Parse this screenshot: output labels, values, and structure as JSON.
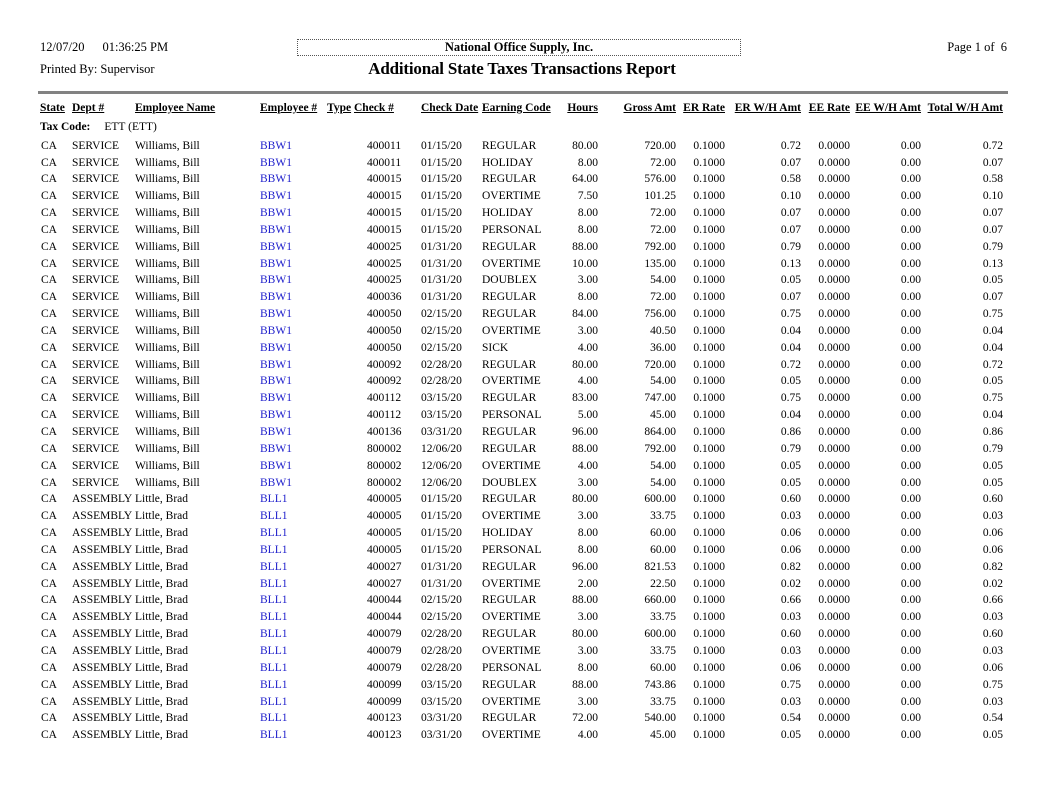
{
  "header": {
    "print_date": "12/07/20",
    "print_time": "01:36:25 PM",
    "printed_by": "Printed By: Supervisor",
    "company_name": "National Office Supply, Inc.",
    "page_indicator": "Page 1 of  6",
    "report_title": "Additional State Taxes Transactions Report"
  },
  "tax_code": {
    "label": "Tax Code:",
    "value": "ETT (ETT)"
  },
  "colors": {
    "employee_link": "#2222CC",
    "rule": "#828282"
  },
  "table": {
    "columns": [
      "State",
      "Dept #",
      "Employee Name",
      "Employee #",
      "Type",
      "Check #",
      "Check Date",
      "Earning Code",
      "Hours",
      "Gross Amt",
      "ER Rate",
      "ER W/H Amt",
      "EE Rate",
      "EE W/H Amt",
      "Total W/H Amt"
    ],
    "rows": [
      [
        "CA",
        "SERVICE",
        "Williams, Bill",
        "BBW1",
        "",
        "400011",
        "01/15/20",
        "REGULAR",
        "80.00",
        "720.00",
        "0.1000",
        "0.72",
        "0.0000",
        "0.00",
        "0.72"
      ],
      [
        "CA",
        "SERVICE",
        "Williams, Bill",
        "BBW1",
        "",
        "400011",
        "01/15/20",
        "HOLIDAY",
        "8.00",
        "72.00",
        "0.1000",
        "0.07",
        "0.0000",
        "0.00",
        "0.07"
      ],
      [
        "CA",
        "SERVICE",
        "Williams, Bill",
        "BBW1",
        "",
        "400015",
        "01/15/20",
        "REGULAR",
        "64.00",
        "576.00",
        "0.1000",
        "0.58",
        "0.0000",
        "0.00",
        "0.58"
      ],
      [
        "CA",
        "SERVICE",
        "Williams, Bill",
        "BBW1",
        "",
        "400015",
        "01/15/20",
        "OVERTIME",
        "7.50",
        "101.25",
        "0.1000",
        "0.10",
        "0.0000",
        "0.00",
        "0.10"
      ],
      [
        "CA",
        "SERVICE",
        "Williams, Bill",
        "BBW1",
        "",
        "400015",
        "01/15/20",
        "HOLIDAY",
        "8.00",
        "72.00",
        "0.1000",
        "0.07",
        "0.0000",
        "0.00",
        "0.07"
      ],
      [
        "CA",
        "SERVICE",
        "Williams, Bill",
        "BBW1",
        "",
        "400015",
        "01/15/20",
        "PERSONAL",
        "8.00",
        "72.00",
        "0.1000",
        "0.07",
        "0.0000",
        "0.00",
        "0.07"
      ],
      [
        "CA",
        "SERVICE",
        "Williams, Bill",
        "BBW1",
        "",
        "400025",
        "01/31/20",
        "REGULAR",
        "88.00",
        "792.00",
        "0.1000",
        "0.79",
        "0.0000",
        "0.00",
        "0.79"
      ],
      [
        "CA",
        "SERVICE",
        "Williams, Bill",
        "BBW1",
        "",
        "400025",
        "01/31/20",
        "OVERTIME",
        "10.00",
        "135.00",
        "0.1000",
        "0.13",
        "0.0000",
        "0.00",
        "0.13"
      ],
      [
        "CA",
        "SERVICE",
        "Williams, Bill",
        "BBW1",
        "",
        "400025",
        "01/31/20",
        "DOUBLEX",
        "3.00",
        "54.00",
        "0.1000",
        "0.05",
        "0.0000",
        "0.00",
        "0.05"
      ],
      [
        "CA",
        "SERVICE",
        "Williams, Bill",
        "BBW1",
        "",
        "400036",
        "01/31/20",
        "REGULAR",
        "8.00",
        "72.00",
        "0.1000",
        "0.07",
        "0.0000",
        "0.00",
        "0.07"
      ],
      [
        "CA",
        "SERVICE",
        "Williams, Bill",
        "BBW1",
        "",
        "400050",
        "02/15/20",
        "REGULAR",
        "84.00",
        "756.00",
        "0.1000",
        "0.75",
        "0.0000",
        "0.00",
        "0.75"
      ],
      [
        "CA",
        "SERVICE",
        "Williams, Bill",
        "BBW1",
        "",
        "400050",
        "02/15/20",
        "OVERTIME",
        "3.00",
        "40.50",
        "0.1000",
        "0.04",
        "0.0000",
        "0.00",
        "0.04"
      ],
      [
        "CA",
        "SERVICE",
        "Williams, Bill",
        "BBW1",
        "",
        "400050",
        "02/15/20",
        "SICK",
        "4.00",
        "36.00",
        "0.1000",
        "0.04",
        "0.0000",
        "0.00",
        "0.04"
      ],
      [
        "CA",
        "SERVICE",
        "Williams, Bill",
        "BBW1",
        "",
        "400092",
        "02/28/20",
        "REGULAR",
        "80.00",
        "720.00",
        "0.1000",
        "0.72",
        "0.0000",
        "0.00",
        "0.72"
      ],
      [
        "CA",
        "SERVICE",
        "Williams, Bill",
        "BBW1",
        "",
        "400092",
        "02/28/20",
        "OVERTIME",
        "4.00",
        "54.00",
        "0.1000",
        "0.05",
        "0.0000",
        "0.00",
        "0.05"
      ],
      [
        "CA",
        "SERVICE",
        "Williams, Bill",
        "BBW1",
        "",
        "400112",
        "03/15/20",
        "REGULAR",
        "83.00",
        "747.00",
        "0.1000",
        "0.75",
        "0.0000",
        "0.00",
        "0.75"
      ],
      [
        "CA",
        "SERVICE",
        "Williams, Bill",
        "BBW1",
        "",
        "400112",
        "03/15/20",
        "PERSONAL",
        "5.00",
        "45.00",
        "0.1000",
        "0.04",
        "0.0000",
        "0.00",
        "0.04"
      ],
      [
        "CA",
        "SERVICE",
        "Williams, Bill",
        "BBW1",
        "",
        "400136",
        "03/31/20",
        "REGULAR",
        "96.00",
        "864.00",
        "0.1000",
        "0.86",
        "0.0000",
        "0.00",
        "0.86"
      ],
      [
        "CA",
        "SERVICE",
        "Williams, Bill",
        "BBW1",
        "",
        "800002",
        "12/06/20",
        "REGULAR",
        "88.00",
        "792.00",
        "0.1000",
        "0.79",
        "0.0000",
        "0.00",
        "0.79"
      ],
      [
        "CA",
        "SERVICE",
        "Williams, Bill",
        "BBW1",
        "",
        "800002",
        "12/06/20",
        "OVERTIME",
        "4.00",
        "54.00",
        "0.1000",
        "0.05",
        "0.0000",
        "0.00",
        "0.05"
      ],
      [
        "CA",
        "SERVICE",
        "Williams, Bill",
        "BBW1",
        "",
        "800002",
        "12/06/20",
        "DOUBLEX",
        "3.00",
        "54.00",
        "0.1000",
        "0.05",
        "0.0000",
        "0.00",
        "0.05"
      ],
      [
        "CA",
        "ASSEMBLY",
        "Little, Brad",
        "BLL1",
        "",
        "400005",
        "01/15/20",
        "REGULAR",
        "80.00",
        "600.00",
        "0.1000",
        "0.60",
        "0.0000",
        "0.00",
        "0.60"
      ],
      [
        "CA",
        "ASSEMBLY",
        "Little, Brad",
        "BLL1",
        "",
        "400005",
        "01/15/20",
        "OVERTIME",
        "3.00",
        "33.75",
        "0.1000",
        "0.03",
        "0.0000",
        "0.00",
        "0.03"
      ],
      [
        "CA",
        "ASSEMBLY",
        "Little, Brad",
        "BLL1",
        "",
        "400005",
        "01/15/20",
        "HOLIDAY",
        "8.00",
        "60.00",
        "0.1000",
        "0.06",
        "0.0000",
        "0.00",
        "0.06"
      ],
      [
        "CA",
        "ASSEMBLY",
        "Little, Brad",
        "BLL1",
        "",
        "400005",
        "01/15/20",
        "PERSONAL",
        "8.00",
        "60.00",
        "0.1000",
        "0.06",
        "0.0000",
        "0.00",
        "0.06"
      ],
      [
        "CA",
        "ASSEMBLY",
        "Little, Brad",
        "BLL1",
        "",
        "400027",
        "01/31/20",
        "REGULAR",
        "96.00",
        "821.53",
        "0.1000",
        "0.82",
        "0.0000",
        "0.00",
        "0.82"
      ],
      [
        "CA",
        "ASSEMBLY",
        "Little, Brad",
        "BLL1",
        "",
        "400027",
        "01/31/20",
        "OVERTIME",
        "2.00",
        "22.50",
        "0.1000",
        "0.02",
        "0.0000",
        "0.00",
        "0.02"
      ],
      [
        "CA",
        "ASSEMBLY",
        "Little, Brad",
        "BLL1",
        "",
        "400044",
        "02/15/20",
        "REGULAR",
        "88.00",
        "660.00",
        "0.1000",
        "0.66",
        "0.0000",
        "0.00",
        "0.66"
      ],
      [
        "CA",
        "ASSEMBLY",
        "Little, Brad",
        "BLL1",
        "",
        "400044",
        "02/15/20",
        "OVERTIME",
        "3.00",
        "33.75",
        "0.1000",
        "0.03",
        "0.0000",
        "0.00",
        "0.03"
      ],
      [
        "CA",
        "ASSEMBLY",
        "Little, Brad",
        "BLL1",
        "",
        "400079",
        "02/28/20",
        "REGULAR",
        "80.00",
        "600.00",
        "0.1000",
        "0.60",
        "0.0000",
        "0.00",
        "0.60"
      ],
      [
        "CA",
        "ASSEMBLY",
        "Little, Brad",
        "BLL1",
        "",
        "400079",
        "02/28/20",
        "OVERTIME",
        "3.00",
        "33.75",
        "0.1000",
        "0.03",
        "0.0000",
        "0.00",
        "0.03"
      ],
      [
        "CA",
        "ASSEMBLY",
        "Little, Brad",
        "BLL1",
        "",
        "400079",
        "02/28/20",
        "PERSONAL",
        "8.00",
        "60.00",
        "0.1000",
        "0.06",
        "0.0000",
        "0.00",
        "0.06"
      ],
      [
        "CA",
        "ASSEMBLY",
        "Little, Brad",
        "BLL1",
        "",
        "400099",
        "03/15/20",
        "REGULAR",
        "88.00",
        "743.86",
        "0.1000",
        "0.75",
        "0.0000",
        "0.00",
        "0.75"
      ],
      [
        "CA",
        "ASSEMBLY",
        "Little, Brad",
        "BLL1",
        "",
        "400099",
        "03/15/20",
        "OVERTIME",
        "3.00",
        "33.75",
        "0.1000",
        "0.03",
        "0.0000",
        "0.00",
        "0.03"
      ],
      [
        "CA",
        "ASSEMBLY",
        "Little, Brad",
        "BLL1",
        "",
        "400123",
        "03/31/20",
        "REGULAR",
        "72.00",
        "540.00",
        "0.1000",
        "0.54",
        "0.0000",
        "0.00",
        "0.54"
      ],
      [
        "CA",
        "ASSEMBLY",
        "Little, Brad",
        "BLL1",
        "",
        "400123",
        "03/31/20",
        "OVERTIME",
        "4.00",
        "45.00",
        "0.1000",
        "0.05",
        "0.0000",
        "0.00",
        "0.05"
      ]
    ]
  }
}
